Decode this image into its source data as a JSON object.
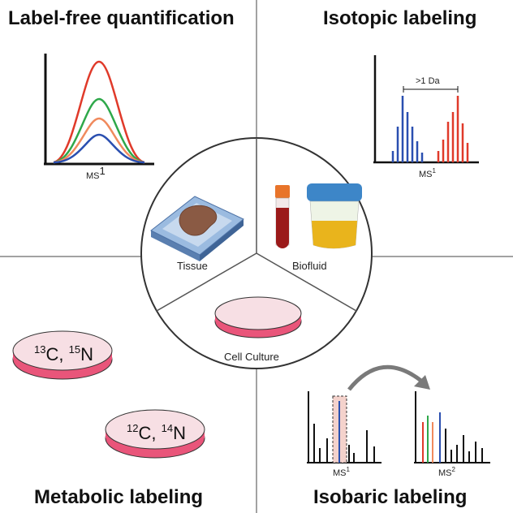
{
  "quadrants": {
    "top_left": {
      "title": "Label-free quantification",
      "axis_label": "MS",
      "axis_sup": "1"
    },
    "top_right": {
      "title": "Isotopic labeling",
      "axis_label": "MS",
      "axis_sup": "1",
      "annotation": ">1 Da"
    },
    "bottom_left": {
      "title": "Metabolic labeling",
      "dish_heavy": {
        "iso1_sup": "13",
        "iso1": "C, ",
        "iso2_sup": "15",
        "iso2": "N"
      },
      "dish_light": {
        "iso1_sup": "12",
        "iso1": "C, ",
        "iso2_sup": "14",
        "iso2": "N"
      }
    },
    "bottom_right": {
      "title": "Isobaric labeling",
      "ms1_label": "MS",
      "ms1_sup": "1",
      "ms2_label": "MS",
      "ms2_sup": "2"
    }
  },
  "center": {
    "tissue": "Tissue",
    "biofluid": "Biofluid",
    "cell_culture": "Cell Culture"
  },
  "colors": {
    "red": "#e03a2a",
    "green": "#2ea84a",
    "orange": "#f08a5d",
    "blue": "#2a4fb0",
    "dish_pink": "#e9557a"
  }
}
